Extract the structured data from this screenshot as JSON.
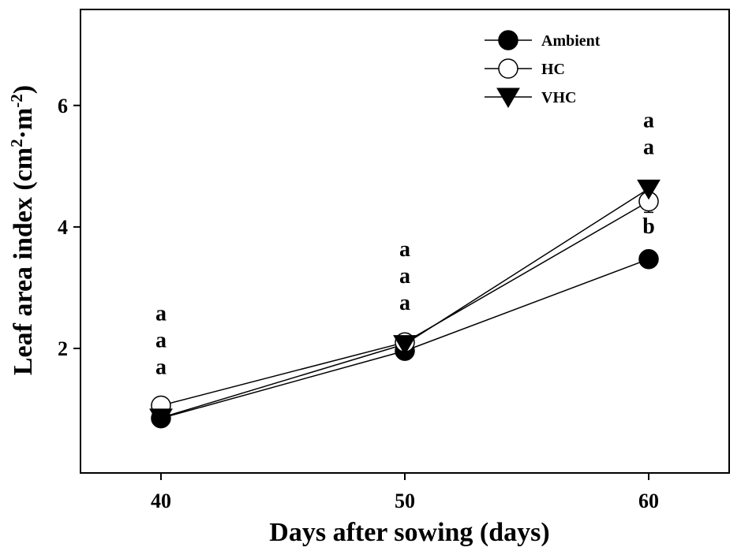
{
  "chart_data": {
    "type": "line",
    "title": "",
    "xlabel": "Days after sowing (days)",
    "ylabel": {
      "main": "Leaf area index (cm",
      "sup1": "2",
      "mid": "·m",
      "sup2": "-2",
      "end": ")"
    },
    "x": [
      40,
      50,
      60
    ],
    "xlim": [
      36.7,
      63.3
    ],
    "ylim": [
      -0.05,
      7.58
    ],
    "x_ticks": [
      "40",
      "50",
      "60"
    ],
    "y_ticks": [
      "2",
      "4",
      "6"
    ],
    "y_tick_values": [
      2,
      4,
      6
    ],
    "legend_position": "top-right",
    "series": [
      {
        "name": "Ambient",
        "marker": "filled-circle",
        "values": [
          0.85,
          1.96,
          3.47
        ],
        "errors": [
          0.05,
          0.07,
          0.06
        ]
      },
      {
        "name": "HC",
        "marker": "open-circle",
        "values": [
          1.06,
          2.1,
          4.42
        ],
        "errors": [
          0.05,
          0.07,
          0.18
        ]
      },
      {
        "name": "VHC",
        "marker": "filled-triangle-down",
        "values": [
          0.86,
          2.07,
          4.63
        ],
        "errors": [
          0.05,
          0.07,
          0.1
        ]
      }
    ],
    "annotations": [
      {
        "x": 40,
        "letters": [
          "a",
          "a",
          "a"
        ],
        "position": "above"
      },
      {
        "x": 50,
        "letters": [
          "a",
          "a",
          "a"
        ],
        "position": "above"
      },
      {
        "x": 60,
        "letters": [
          "a",
          "a"
        ],
        "position": "above"
      },
      {
        "x": 60,
        "letters": [
          "b"
        ],
        "position": "between"
      }
    ]
  }
}
